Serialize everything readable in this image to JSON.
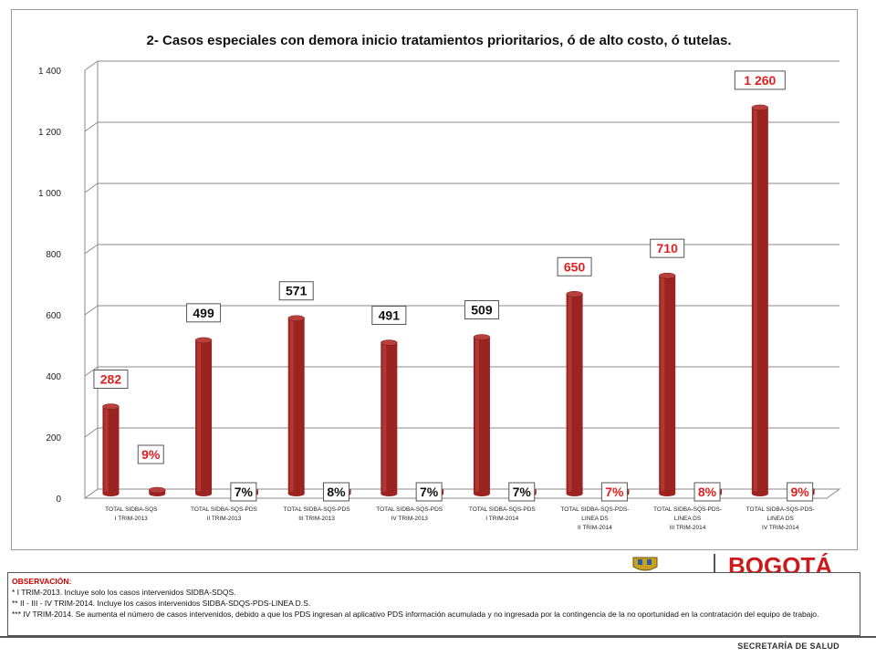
{
  "chart_data": {
    "type": "bar",
    "title": "2- Casos especiales con demora inicio tratamientos prioritarios, ó de alto costo, ó tutelas.",
    "ylim": [
      0,
      1400
    ],
    "yticks": [
      "0",
      "200",
      "400",
      "600",
      "800",
      "1 000",
      "1 200",
      "1 400"
    ],
    "ytick_values": [
      0,
      200,
      400,
      600,
      800,
      1000,
      1200,
      1400
    ],
    "categories": [
      [
        "TOTAL SIDBA-SQS",
        "I TRIM-2013"
      ],
      [
        "TOTAL SIDBA-SQS-PDS",
        "II TRIM-2013"
      ],
      [
        "TOTAL SIDBA-SQS-PDS",
        "III TRIM-2013"
      ],
      [
        "TOTAL SIDBA-SQS-PDS",
        "IV TRIM-2013"
      ],
      [
        "TOTAL SIDBA-SQS-PDS",
        "I TRIM-2014"
      ],
      [
        "TOTAL SIDBA-SQS-PDS-",
        "LINEA DS",
        "II TRIM-2014"
      ],
      [
        "TOTAL SIDBA-SQS-PDS-",
        "LINEA DS",
        "III TRIM-2014"
      ],
      [
        "TOTAL SIDBA-SQS-PDS-",
        "LINEA DS",
        "IV TRIM-2014"
      ]
    ],
    "series": [
      {
        "values": [
          282,
          499,
          571,
          491,
          509,
          650,
          710,
          1260
        ],
        "labels": [
          "282",
          "499",
          "571",
          "491",
          "509",
          "650",
          "710",
          "1 260"
        ],
        "label_colors": [
          "#e02020",
          "#111111",
          "#111111",
          "#111111",
          "#111111",
          "#e02020",
          "#e02020",
          "#e02020"
        ]
      },
      {
        "values": [
          9,
          7,
          8,
          7,
          7,
          7,
          8,
          9
        ],
        "labels": [
          "9%",
          "7%",
          "8%",
          "7%",
          "7%",
          "7%",
          "8%",
          "9%"
        ],
        "label_colors": [
          "#e02020",
          "#111111",
          "#111111",
          "#111111",
          "#111111",
          "#e02020",
          "#e02020",
          "#e02020"
        ]
      }
    ],
    "bar_color": "#9b2320",
    "grid": true
  },
  "observacion": {
    "title": "OBSERVACIÓN:",
    "lines": [
      "* I TRIM-2013. Incluye solo los casos intervenidos SIDBA-SDQS.",
      "** II - III - IV TRIM-2014. Incluye los casos intervenidos SIDBA-SDQS-PDS-LINEA D.S.",
      "*** IV TRIM-2014. Se aumenta el número de casos intervenidos, debido a que los PDS ingresan al aplicativo PDS información acumulada y no ingresada por la contingencia de la no oportunidad en la contratación del equipo de trabajo."
    ]
  },
  "logo": {
    "text": "BOGOTÁ",
    "color": "#cc1a1a"
  },
  "footer": {
    "text": "SECRETARÍA DE SALUD"
  }
}
